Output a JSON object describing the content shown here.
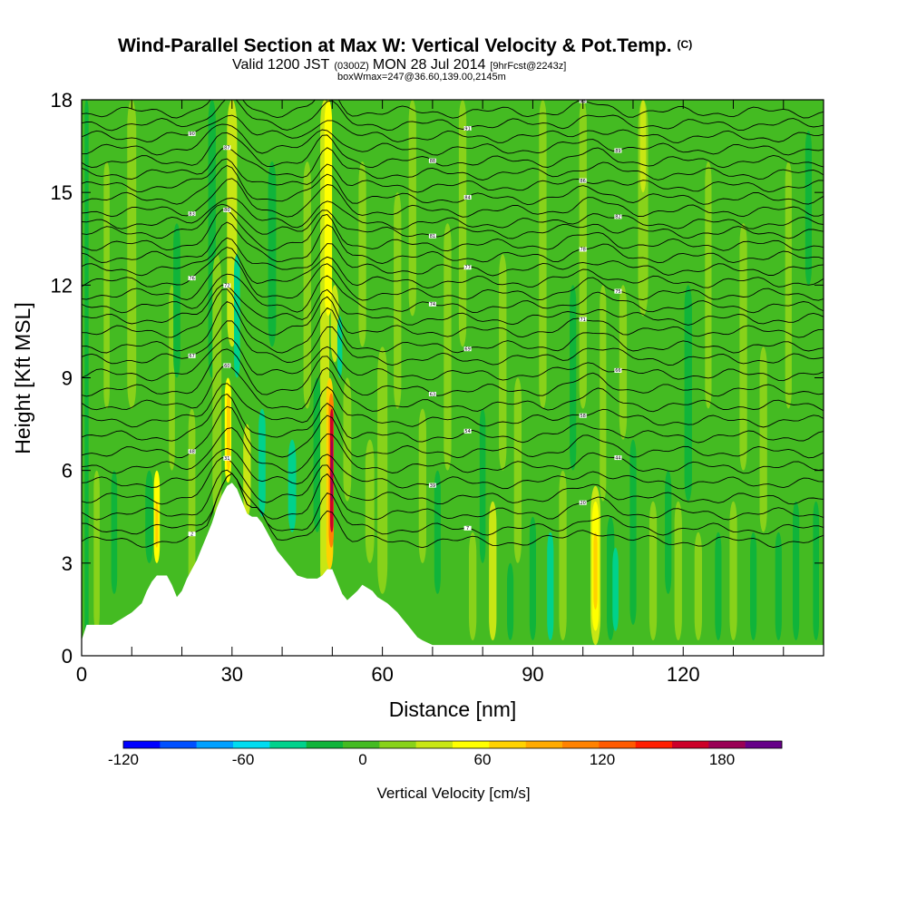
{
  "chart_data": {
    "type": "heatmap",
    "title": "Wind-Parallel Section at Max W: Vertical Velocity & Pot.Temp.",
    "title_mark": "(C)",
    "subtitle_parts": [
      "Valid 1200 JST",
      "(0300Z)",
      "MON 28 Jul 2014",
      "[9hrFcst@2243z]"
    ],
    "subtitle2": "boxWmax=247@36.60,139.00,2145m",
    "xlabel": "Distance [nm]",
    "ylabel": "Height [Kft MSL]",
    "xlim": [
      0,
      148
    ],
    "ylim": [
      0,
      18
    ],
    "x_ticks": [
      0,
      30,
      60,
      90,
      120
    ],
    "x_tick_labels": [
      "0",
      "30",
      "60",
      "90",
      "120"
    ],
    "x_minor_step": 10,
    "y_ticks": [
      0,
      3,
      6,
      9,
      12,
      15,
      18
    ],
    "y_tick_labels": [
      "0",
      "3",
      "6",
      "9",
      "12",
      "15",
      "18"
    ],
    "background_color": "#44bb22",
    "colorbar": {
      "title": "Vertical Velocity [cm/s]",
      "min": -120,
      "max": 210,
      "step": 20,
      "tick_values": [
        -120,
        -60,
        0,
        60,
        120,
        180
      ],
      "tick_labels": [
        "-120",
        "-60",
        "0",
        "60",
        "120",
        "180"
      ],
      "colors": [
        "#0000ff",
        "#0050ff",
        "#00a0ff",
        "#00dcf0",
        "#00d28c",
        "#10b43a",
        "#44bb22",
        "#88d21a",
        "#c8e614",
        "#ffff00",
        "#ffd200",
        "#ffaa00",
        "#ff8200",
        "#ff5a00",
        "#ff1e00",
        "#cc0028",
        "#990055",
        "#660088"
      ]
    },
    "terrain": [
      [
        0,
        0.5
      ],
      [
        1,
        1.0
      ],
      [
        3,
        1.0
      ],
      [
        6,
        1.0
      ],
      [
        8,
        1.2
      ],
      [
        10,
        1.4
      ],
      [
        12,
        1.7
      ],
      [
        13,
        2.1
      ],
      [
        14,
        2.4
      ],
      [
        15,
        2.6
      ],
      [
        17,
        2.6
      ],
      [
        18,
        2.3
      ],
      [
        19,
        1.9
      ],
      [
        20,
        2.1
      ],
      [
        21,
        2.5
      ],
      [
        22,
        2.8
      ],
      [
        23,
        3.1
      ],
      [
        24,
        3.5
      ],
      [
        25,
        3.9
      ],
      [
        26,
        4.3
      ],
      [
        27,
        4.8
      ],
      [
        28,
        5.2
      ],
      [
        29,
        5.5
      ],
      [
        30,
        5.6
      ],
      [
        31,
        5.4
      ],
      [
        32,
        5.0
      ],
      [
        33,
        4.6
      ],
      [
        34,
        4.5
      ],
      [
        35,
        4.5
      ],
      [
        36,
        4.3
      ],
      [
        37,
        4.0
      ],
      [
        38,
        3.7
      ],
      [
        39,
        3.4
      ],
      [
        40,
        3.2
      ],
      [
        41,
        3.0
      ],
      [
        42,
        2.8
      ],
      [
        43,
        2.6
      ],
      [
        45,
        2.5
      ],
      [
        47,
        2.5
      ],
      [
        48,
        2.6
      ],
      [
        49,
        2.8
      ],
      [
        50,
        2.8
      ],
      [
        51,
        2.4
      ],
      [
        52,
        2.0
      ],
      [
        53,
        1.8
      ],
      [
        55,
        2.1
      ],
      [
        56,
        2.3
      ],
      [
        58,
        2.1
      ],
      [
        59,
        1.9
      ],
      [
        61,
        1.7
      ],
      [
        63,
        1.4
      ],
      [
        64,
        1.2
      ],
      [
        65,
        1.0
      ],
      [
        66,
        0.8
      ],
      [
        67,
        0.6
      ],
      [
        68,
        0.5
      ],
      [
        70,
        0.35
      ],
      [
        90,
        0.35
      ],
      [
        148,
        0.35
      ]
    ],
    "bands": [
      {
        "x": 1,
        "w": 0.8,
        "y0": 0.5,
        "y1": 18,
        "v": -20
      },
      {
        "x": 3,
        "w": 1.2,
        "y0": 0.8,
        "y1": 6,
        "v": 20
      },
      {
        "x": 5,
        "w": 1.2,
        "y0": 8,
        "y1": 16,
        "v": 20
      },
      {
        "x": 6.5,
        "w": 1.2,
        "y0": 2,
        "y1": 6,
        "v": -20
      },
      {
        "x": 10,
        "w": 1.8,
        "y0": 8,
        "y1": 18,
        "v": 20
      },
      {
        "x": 13.5,
        "w": 1.6,
        "y0": 3,
        "y1": 6,
        "v": -20
      },
      {
        "x": 15,
        "w": 1.2,
        "y0": 3,
        "y1": 6,
        "v": 60
      },
      {
        "x": 15,
        "w": 0.6,
        "y0": 3.5,
        "y1": 5,
        "v": 80
      },
      {
        "x": 18,
        "w": 1.2,
        "y0": 6,
        "y1": 12,
        "v": 20
      },
      {
        "x": 19,
        "w": 1.4,
        "y0": 9,
        "y1": 14,
        "v": -20
      },
      {
        "x": 22,
        "w": 1.4,
        "y0": 0.8,
        "y1": 8,
        "v": 20
      },
      {
        "x": 26,
        "w": 1.5,
        "y0": 9,
        "y1": 18,
        "v": -20
      },
      {
        "x": 27,
        "w": 1.8,
        "y0": 4.5,
        "y1": 13,
        "v": 20
      },
      {
        "x": 29.2,
        "w": 1.3,
        "y0": 5.6,
        "y1": 9,
        "v": 60
      },
      {
        "x": 29.3,
        "w": 0.7,
        "y0": 6,
        "y1": 8.5,
        "v": 80
      },
      {
        "x": 30,
        "w": 2.0,
        "y0": 10,
        "y1": 18,
        "v": 40
      },
      {
        "x": 31,
        "w": 1.2,
        "y0": 9,
        "y1": 13,
        "v": -40
      },
      {
        "x": 33,
        "w": 1.5,
        "y0": 4.5,
        "y1": 7.5,
        "v": 40
      },
      {
        "x": 36,
        "w": 1.4,
        "y0": 4.5,
        "y1": 8,
        "v": -40
      },
      {
        "x": 38,
        "w": 1.6,
        "y0": 10,
        "y1": 16,
        "v": -20
      },
      {
        "x": 42,
        "w": 1.6,
        "y0": 4,
        "y1": 7,
        "v": -40
      },
      {
        "x": 45,
        "w": 1.5,
        "y0": 8,
        "y1": 16,
        "v": 20
      },
      {
        "x": 47,
        "w": 1.5,
        "y0": 4,
        "y1": 9,
        "v": -20
      },
      {
        "x": 48.5,
        "w": 1.8,
        "y0": 2,
        "y1": 18,
        "v": 40
      },
      {
        "x": 49.2,
        "w": 1.5,
        "y0": 11,
        "y1": 18,
        "v": 60
      },
      {
        "x": 50.5,
        "w": 1.6,
        "y0": 9.5,
        "y1": 12,
        "v": 40
      },
      {
        "x": 49.5,
        "w": 1.4,
        "y0": 2.8,
        "y1": 9,
        "v": 80
      },
      {
        "x": 49.8,
        "w": 1.0,
        "y0": 3.5,
        "y1": 8.5,
        "v": 130
      },
      {
        "x": 49.9,
        "w": 0.65,
        "y0": 4,
        "y1": 8,
        "v": 180
      },
      {
        "x": 49.95,
        "w": 0.35,
        "y0": 5,
        "y1": 7,
        "v": 210
      },
      {
        "x": 51.5,
        "w": 1.0,
        "y0": 9,
        "y1": 11,
        "v": -40
      },
      {
        "x": 53,
        "w": 1.6,
        "y0": 5,
        "y1": 9,
        "v": 20
      },
      {
        "x": 56,
        "w": 1.5,
        "y0": 10,
        "y1": 16,
        "v": 20
      },
      {
        "x": 57.5,
        "w": 1.8,
        "y0": 3,
        "y1": 7,
        "v": 20
      },
      {
        "x": 60,
        "w": 2.0,
        "y0": 2,
        "y1": 10,
        "v": 20
      },
      {
        "x": 63,
        "w": 1.5,
        "y0": 8,
        "y1": 15,
        "v": 20
      },
      {
        "x": 66,
        "w": 1.5,
        "y0": 11,
        "y1": 18,
        "v": 20
      },
      {
        "x": 68,
        "w": 1.5,
        "y0": 3,
        "y1": 8,
        "v": 20
      },
      {
        "x": 71,
        "w": 1.3,
        "y0": 2,
        "y1": 6,
        "v": -20
      },
      {
        "x": 73,
        "w": 1.5,
        "y0": 6,
        "y1": 14,
        "v": 20
      },
      {
        "x": 76,
        "w": 1.5,
        "y0": 10,
        "y1": 18,
        "v": 20
      },
      {
        "x": 78,
        "w": 1.5,
        "y0": 0.5,
        "y1": 4,
        "v": 20
      },
      {
        "x": 80,
        "w": 1.2,
        "y0": 3,
        "y1": 8,
        "v": -20
      },
      {
        "x": 82,
        "w": 1.5,
        "y0": 0.5,
        "y1": 5,
        "v": 40
      },
      {
        "x": 84,
        "w": 1.5,
        "y0": 6,
        "y1": 13,
        "v": 20
      },
      {
        "x": 85.5,
        "w": 1.3,
        "y0": 0.5,
        "y1": 3,
        "v": -20
      },
      {
        "x": 87,
        "w": 1.5,
        "y0": 3,
        "y1": 9,
        "v": 20
      },
      {
        "x": 90,
        "w": 1.3,
        "y0": 0.5,
        "y1": 4.5,
        "v": -20
      },
      {
        "x": 92,
        "w": 1.5,
        "y0": 8,
        "y1": 18,
        "v": 20
      },
      {
        "x": 93.5,
        "w": 1.3,
        "y0": 0.5,
        "y1": 4,
        "v": -40
      },
      {
        "x": 96,
        "w": 1.5,
        "y0": 0.5,
        "y1": 6,
        "v": 20
      },
      {
        "x": 98,
        "w": 1.3,
        "y0": 6,
        "y1": 12,
        "v": -20
      },
      {
        "x": 100,
        "w": 1.5,
        "y0": 8,
        "y1": 18,
        "v": 20
      },
      {
        "x": 102.5,
        "w": 2.0,
        "y0": 0.35,
        "y1": 5.5,
        "v": 40
      },
      {
        "x": 102.5,
        "w": 1.4,
        "y0": 0.8,
        "y1": 5,
        "v": 60
      },
      {
        "x": 102.5,
        "w": 0.8,
        "y0": 1.5,
        "y1": 4,
        "v": 80
      },
      {
        "x": 104,
        "w": 1.3,
        "y0": 5,
        "y1": 12,
        "v": 20
      },
      {
        "x": 105.5,
        "w": 1.5,
        "y0": 0.5,
        "y1": 4.5,
        "v": -20
      },
      {
        "x": 106.5,
        "w": 1.2,
        "y0": 0.8,
        "y1": 3.5,
        "v": -40
      },
      {
        "x": 108,
        "w": 1.5,
        "y0": 7,
        "y1": 12,
        "v": 20
      },
      {
        "x": 110,
        "w": 1.3,
        "y0": 1,
        "y1": 7,
        "v": -20
      },
      {
        "x": 112,
        "w": 2.0,
        "y0": 11,
        "y1": 18,
        "v": 20
      },
      {
        "x": 112,
        "w": 1.2,
        "y0": 15,
        "y1": 18,
        "v": 40
      },
      {
        "x": 114,
        "w": 1.5,
        "y0": 0.5,
        "y1": 5,
        "v": 20
      },
      {
        "x": 117,
        "w": 1.3,
        "y0": 2,
        "y1": 6,
        "v": -20
      },
      {
        "x": 119,
        "w": 1.5,
        "y0": 0.5,
        "y1": 5,
        "v": 20
      },
      {
        "x": 121,
        "w": 1.5,
        "y0": 5,
        "y1": 12,
        "v": -20
      },
      {
        "x": 123,
        "w": 1.5,
        "y0": 0.5,
        "y1": 4,
        "v": 20
      },
      {
        "x": 125,
        "w": 1.3,
        "y0": 8,
        "y1": 16,
        "v": 20
      },
      {
        "x": 127,
        "w": 1.3,
        "y0": 0.5,
        "y1": 4,
        "v": -20
      },
      {
        "x": 130,
        "w": 1.5,
        "y0": 0.5,
        "y1": 5,
        "v": 20
      },
      {
        "x": 132,
        "w": 1.5,
        "y0": 6,
        "y1": 14,
        "v": 20
      },
      {
        "x": 134,
        "w": 1.3,
        "y0": 0.5,
        "y1": 4,
        "v": -20
      },
      {
        "x": 136,
        "w": 1.5,
        "y0": 4,
        "y1": 10,
        "v": 20
      },
      {
        "x": 139,
        "w": 1.3,
        "y0": 0.5,
        "y1": 4,
        "v": -20
      },
      {
        "x": 141,
        "w": 1.3,
        "y0": 8,
        "y1": 16,
        "v": 20
      },
      {
        "x": 142.5,
        "w": 1.3,
        "y0": 0.5,
        "y1": 5,
        "v": -20
      },
      {
        "x": 145,
        "w": 1.3,
        "y0": 12,
        "y1": 17,
        "v": -20
      },
      {
        "x": 146.5,
        "w": 1.2,
        "y0": 0.5,
        "y1": 5,
        "v": -20
      }
    ],
    "isentropes": {
      "base_heights": [
        3.7,
        4.1,
        4.6,
        5.1,
        5.6,
        6.1,
        6.6,
        7.1,
        7.6,
        8.1,
        8.6,
        9.1,
        9.6,
        10.0,
        10.5,
        10.9,
        11.3,
        11.7,
        12.1,
        12.5,
        12.9,
        13.3,
        13.7,
        14.0,
        14.4,
        14.8,
        15.2,
        15.6,
        16.0,
        16.4,
        16.8,
        17.2,
        17.6
      ],
      "labels": [
        "2",
        "7",
        "20",
        "31",
        "39",
        "44",
        "48",
        "54",
        "58",
        "60",
        "63",
        "66",
        "67",
        "69",
        "71",
        "72",
        "74",
        "75",
        "76",
        "77",
        "78",
        "80",
        "81",
        "82",
        "83",
        "84",
        "86",
        "87",
        "88",
        "89",
        "90",
        "91",
        "93"
      ]
    }
  }
}
